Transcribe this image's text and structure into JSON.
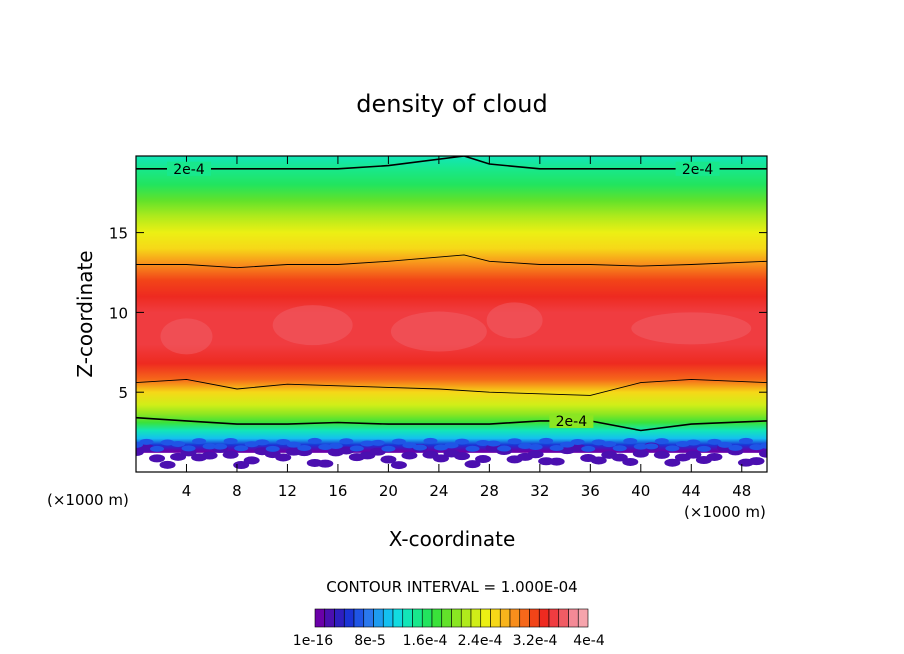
{
  "chart_data": {
    "type": "heatmap",
    "title": "density of cloud",
    "xlabel": "X-coordinate",
    "ylabel": "Z-coordinate",
    "x_unit": "(×1000 m)",
    "y_unit": "(×1000 m)",
    "xlim": [
      0,
      50
    ],
    "ylim": [
      0,
      19.8
    ],
    "x_ticks": [
      4,
      8,
      12,
      16,
      20,
      24,
      28,
      32,
      36,
      40,
      44,
      48
    ],
    "y_ticks": [
      5,
      10,
      15
    ],
    "contour_interval_text": "CONTOUR INTERVAL = 1.000E-04",
    "contour_label": "2e-4",
    "colorbar": {
      "labels": [
        "1e-16",
        "8e-5",
        "1.6e-4",
        "2.4e-4",
        "3.2e-4",
        "4e-4"
      ],
      "colors": [
        "#6a00a8",
        "#4b0fb0",
        "#2e1fc0",
        "#1a34d6",
        "#1f55e6",
        "#2a78ee",
        "#1e9cf0",
        "#14c0f0",
        "#12dbe0",
        "#12e6b8",
        "#18e88c",
        "#22e45e",
        "#3ae23a",
        "#62e22a",
        "#8ae622",
        "#b0ea1c",
        "#d0ee18",
        "#ecf014",
        "#f6d818",
        "#f8b41c",
        "#f88e1c",
        "#f6681a",
        "#f24418",
        "#ee2a20",
        "#f03c40",
        "#f05c64",
        "#f48a96",
        "#f6a4ac"
      ]
    },
    "levels": [
      {
        "z": 1.3,
        "value": 0.0
      },
      {
        "z": 1.7,
        "value": 0.12
      },
      {
        "z": 2.1,
        "value": 0.25
      },
      {
        "z": 2.6,
        "value": 0.35
      },
      {
        "z": 3.1,
        "value": 0.45
      },
      {
        "z": 3.6,
        "value": 0.5
      },
      {
        "z": 4.2,
        "value": 0.58
      },
      {
        "z": 5.0,
        "value": 0.66
      },
      {
        "z": 5.8,
        "value": 0.76
      },
      {
        "z": 6.8,
        "value": 0.84
      },
      {
        "z": 8.0,
        "value": 0.88
      },
      {
        "z": 9.0,
        "value": 0.9
      },
      {
        "z": 10.0,
        "value": 0.88
      },
      {
        "z": 11.0,
        "value": 0.84
      },
      {
        "z": 12.0,
        "value": 0.8
      },
      {
        "z": 13.0,
        "value": 0.74
      },
      {
        "z": 14.0,
        "value": 0.68
      },
      {
        "z": 15.0,
        "value": 0.62
      },
      {
        "z": 16.0,
        "value": 0.56
      },
      {
        "z": 17.0,
        "value": 0.48
      },
      {
        "z": 18.0,
        "value": 0.42
      },
      {
        "z": 19.0,
        "value": 0.36
      },
      {
        "z": 19.8,
        "value": 0.32
      }
    ],
    "contours": [
      {
        "z": [
          19.0,
          19.0,
          19.0,
          19.0,
          19.0,
          19.2,
          19.8,
          19.3,
          19.0,
          19.0,
          19.0,
          19.0,
          19.0
        ],
        "x": [
          0,
          4,
          8,
          12,
          16,
          20,
          26,
          28,
          32,
          36,
          40,
          44,
          50
        ]
      },
      {
        "z": [
          13.0,
          13.0,
          12.8,
          13.0,
          13.0,
          13.2,
          13.6,
          13.2,
          13.0,
          13.0,
          12.9,
          13.0,
          13.2
        ],
        "x": [
          0,
          4,
          8,
          12,
          16,
          20,
          26,
          28,
          32,
          36,
          40,
          44,
          50
        ]
      },
      {
        "z": [
          5.6,
          5.8,
          5.2,
          5.5,
          5.4,
          5.3,
          5.2,
          5.0,
          4.9,
          4.8,
          5.6,
          5.8,
          5.6
        ],
        "x": [
          0,
          4,
          8,
          12,
          16,
          20,
          24,
          28,
          32,
          36,
          40,
          44,
          50
        ]
      },
      {
        "z": [
          3.4,
          3.2,
          3.0,
          3.0,
          3.1,
          3.0,
          3.0,
          3.0,
          3.2,
          3.2,
          2.6,
          3.0,
          3.2
        ],
        "x": [
          0,
          4,
          8,
          12,
          16,
          20,
          24,
          28,
          32,
          36,
          40,
          44,
          50
        ]
      }
    ]
  }
}
